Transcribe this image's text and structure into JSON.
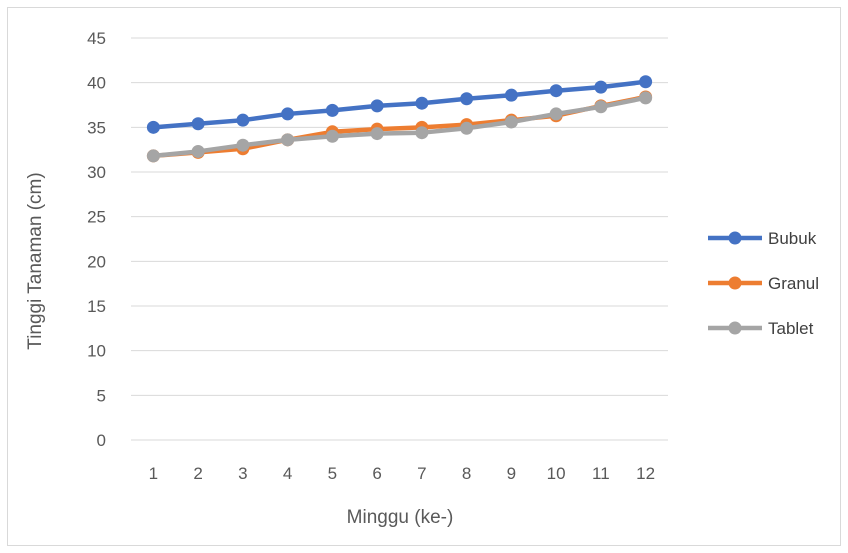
{
  "chart_data": {
    "type": "line",
    "title": "",
    "xlabel": "Minggu  (ke-)",
    "ylabel": "Tinggi Tanaman (cm)",
    "categories": [
      "1",
      "2",
      "3",
      "4",
      "5",
      "6",
      "7",
      "8",
      "9",
      "10",
      "11",
      "12"
    ],
    "ylim": [
      0,
      45
    ],
    "yticks": [
      "0",
      "5",
      "10",
      "15",
      "20",
      "25",
      "30",
      "35",
      "40",
      "45"
    ],
    "grid": true,
    "legend_position": "right",
    "series": [
      {
        "name": "Bubuk",
        "color": "#4472c4",
        "values": [
          35.0,
          35.4,
          35.8,
          36.5,
          36.9,
          37.4,
          37.7,
          38.2,
          38.6,
          39.1,
          39.5,
          40.1
        ]
      },
      {
        "name": "Granul",
        "color": "#ed7d31",
        "values": [
          31.8,
          32.2,
          32.6,
          33.6,
          34.5,
          34.8,
          35.0,
          35.3,
          35.8,
          36.3,
          37.4,
          38.4
        ]
      },
      {
        "name": "Tablet",
        "color": "#a5a5a5",
        "values": [
          31.8,
          32.3,
          33.0,
          33.6,
          34.0,
          34.3,
          34.4,
          34.9,
          35.6,
          36.5,
          37.3,
          38.3
        ]
      }
    ]
  }
}
